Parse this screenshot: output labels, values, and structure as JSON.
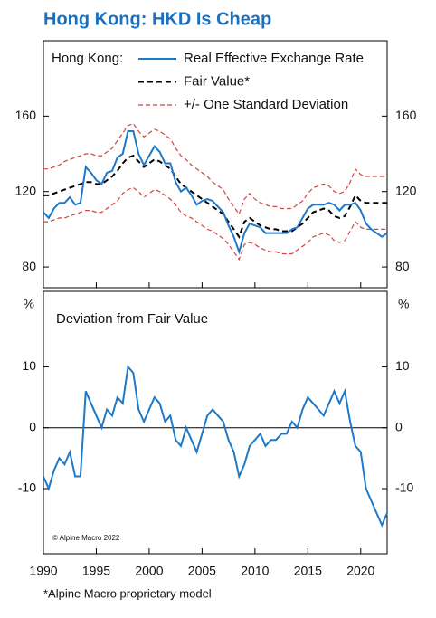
{
  "chart_data": [
    {
      "type": "line",
      "title": "Hong Kong: HKD Is Cheap",
      "legend_title": "Hong Kong:",
      "x": [
        1990,
        1990.5,
        1991,
        1991.5,
        1992,
        1992.5,
        1993,
        1993.5,
        1994,
        1994.5,
        1995,
        1995.5,
        1996,
        1996.5,
        1997,
        1997.5,
        1998,
        1998.5,
        1999,
        1999.5,
        2000,
        2000.5,
        2001,
        2001.5,
        2002,
        2002.5,
        2003,
        2003.5,
        2004,
        2004.5,
        2005,
        2005.5,
        2006,
        2006.5,
        2007,
        2007.5,
        2008,
        2008.5,
        2009,
        2009.5,
        2010,
        2010.5,
        2011,
        2011.5,
        2012,
        2012.5,
        2013,
        2013.5,
        2014,
        2014.5,
        2015,
        2015.5,
        2016,
        2016.5,
        2017,
        2017.5,
        2018,
        2018.5,
        2019,
        2019.5,
        2020,
        2020.5,
        2021,
        2021.5,
        2022,
        2022.5
      ],
      "xlim": [
        1990,
        2022.5
      ],
      "ylim": [
        69,
        200
      ],
      "yticks": [
        80,
        120,
        160
      ],
      "series": [
        {
          "name": "Real Effective Exchange Rate",
          "color": "#1f78c8",
          "dash": "solid",
          "values": [
            109,
            106,
            111,
            114,
            114,
            117,
            113,
            114,
            133,
            130,
            126,
            124,
            130,
            131,
            138,
            140,
            152,
            152,
            140,
            134,
            139,
            144,
            141,
            135,
            135,
            125,
            120,
            122,
            118,
            113,
            115,
            116,
            115,
            112,
            109,
            102,
            96,
            88,
            98,
            103,
            102,
            101,
            98,
            98,
            98,
            98,
            98,
            100,
            101,
            106,
            111,
            113,
            113,
            113,
            114,
            113,
            110,
            113,
            113,
            114,
            110,
            103,
            100,
            98,
            96,
            98
          ]
        },
        {
          "name": "Fair Value*",
          "color": "#000000",
          "dash": "dashed",
          "values": [
            118,
            118,
            119,
            120,
            121,
            122,
            123,
            124,
            125,
            125,
            124,
            124,
            126,
            128,
            131,
            135,
            138,
            139,
            136,
            133,
            135,
            137,
            136,
            134,
            132,
            128,
            124,
            122,
            120,
            118,
            116,
            114,
            112,
            110,
            108,
            104,
            100,
            96,
            104,
            106,
            104,
            102,
            101,
            100,
            100,
            99,
            99,
            99,
            101,
            103,
            106,
            109,
            110,
            111,
            110,
            107,
            106,
            107,
            112,
            118,
            115,
            114,
            114,
            114,
            114,
            114
          ]
        },
        {
          "name": "+/- One Standard Deviation",
          "color": "#d0453f",
          "dash": "dashed",
          "upper": [
            132,
            132,
            133,
            134,
            136,
            137,
            138,
            139,
            140,
            140,
            139,
            139,
            141,
            143,
            147,
            151,
            155,
            156,
            152,
            149,
            151,
            153,
            152,
            150,
            148,
            143,
            139,
            137,
            134,
            132,
            130,
            128,
            125,
            123,
            121,
            116,
            112,
            108,
            116,
            119,
            116,
            114,
            113,
            112,
            112,
            111,
            111,
            111,
            113,
            115,
            119,
            122,
            123,
            124,
            123,
            120,
            119,
            120,
            125,
            132,
            129,
            128,
            128,
            128,
            128,
            128
          ],
          "lower": [
            104,
            104,
            105,
            106,
            106,
            107,
            108,
            109,
            110,
            110,
            109,
            109,
            111,
            113,
            115,
            119,
            121,
            122,
            120,
            117,
            119,
            121,
            120,
            118,
            116,
            113,
            109,
            107,
            106,
            104,
            102,
            100,
            99,
            97,
            95,
            92,
            88,
            84,
            92,
            93,
            92,
            90,
            89,
            88,
            88,
            87,
            87,
            87,
            89,
            91,
            93,
            96,
            97,
            98,
            97,
            94,
            93,
            94,
            99,
            104,
            101,
            100,
            100,
            100,
            100,
            100
          ]
        }
      ]
    },
    {
      "type": "line",
      "ylabel": "%",
      "annotations": [
        "Deviation from Fair Value",
        "© Alpine Macro 2022"
      ],
      "note": "*Alpine Macro proprietary model",
      "x": [
        1990,
        1990.5,
        1991,
        1991.5,
        1992,
        1992.5,
        1993,
        1993.5,
        1994,
        1994.5,
        1995,
        1995.5,
        1996,
        1996.5,
        1997,
        1997.5,
        1998,
        1998.5,
        1999,
        1999.5,
        2000,
        2000.5,
        2001,
        2001.5,
        2002,
        2002.5,
        2003,
        2003.5,
        2004,
        2004.5,
        2005,
        2005.5,
        2006,
        2006.5,
        2007,
        2007.5,
        2008,
        2008.5,
        2009,
        2009.5,
        2010,
        2010.5,
        2011,
        2011.5,
        2012,
        2012.5,
        2013,
        2013.5,
        2014,
        2014.5,
        2015,
        2015.5,
        2016,
        2016.5,
        2017,
        2017.5,
        2018,
        2018.5,
        2019,
        2019.5,
        2020,
        2020.5,
        2021,
        2021.5,
        2022,
        2022.5
      ],
      "xlim": [
        1990,
        2022.5
      ],
      "xticks": [
        1990,
        1995,
        2000,
        2005,
        2010,
        2015,
        2020
      ],
      "ylim": [
        -20.7,
        22.4
      ],
      "yticks": [
        -10,
        0,
        10
      ],
      "color": "#1f78c8",
      "values": [
        -8,
        -10,
        -7,
        -5,
        -6,
        -4,
        -8,
        -8,
        6,
        4,
        2,
        0,
        3,
        2,
        5,
        4,
        10,
        9,
        3,
        1,
        3,
        5,
        4,
        1,
        2,
        -2,
        -3,
        0,
        -2,
        -4,
        -1,
        2,
        3,
        2,
        1,
        -2,
        -4,
        -8,
        -6,
        -3,
        -2,
        -1,
        -3,
        -2,
        -2,
        -1,
        -1,
        1,
        0,
        3,
        5,
        4,
        3,
        2,
        4,
        6,
        4,
        6,
        1,
        -3,
        -4,
        -10,
        -12,
        -14,
        -16,
        -14
      ]
    }
  ]
}
